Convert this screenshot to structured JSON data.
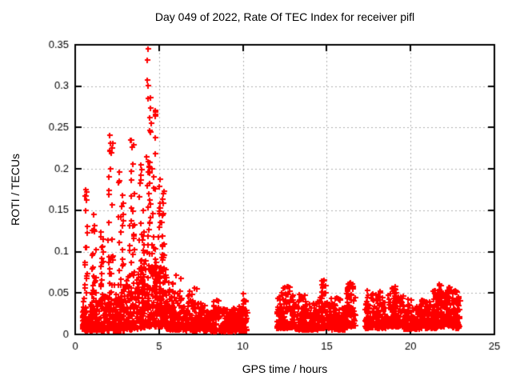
{
  "chart_data": {
    "type": "scatter",
    "title": "Day 049 of 2022, Rate Of TEC Index for receiver pifl",
    "xlabel": "GPS time / hours",
    "ylabel": "ROTI / TECUs",
    "xlim": [
      0,
      25
    ],
    "ylim": [
      0,
      0.35
    ],
    "xticks": [
      0,
      5,
      10,
      15,
      20,
      25
    ],
    "yticks": [
      0,
      0.05,
      0.1,
      0.15,
      0.2,
      0.25,
      0.3,
      0.35
    ],
    "xtick_labels": [
      "0",
      "5",
      "10",
      "15",
      "20",
      "25"
    ],
    "ytick_labels": [
      "0",
      "0.05",
      "0.1",
      "0.15",
      "0.2",
      "0.25",
      "0.3",
      "0.35"
    ],
    "grid": "dashed-major-both-axes",
    "legend": "none",
    "marker": "plus",
    "marker_color": "#ff0000",
    "grid_color": "#b0b0b0",
    "border_color": "#000000",
    "text_color": "#000000",
    "background": "#ffffff",
    "data_start_hour": 0.42,
    "data_end_hour": 22.95,
    "gaps": [
      [
        10.25,
        12.0
      ],
      [
        16.72,
        17.25
      ]
    ],
    "max_point": {
      "x": 4.33,
      "y": 0.345
    },
    "notable_points": [
      [
        4.33,
        0.345
      ],
      [
        4.28,
        0.332
      ],
      [
        4.3,
        0.307
      ],
      [
        4.35,
        0.301
      ],
      [
        4.32,
        0.285
      ],
      [
        4.45,
        0.262
      ],
      [
        4.52,
        0.255
      ],
      [
        4.42,
        0.247
      ],
      [
        2.05,
        0.241
      ],
      [
        2.12,
        0.231
      ],
      [
        3.32,
        0.235
      ],
      [
        3.4,
        0.226
      ],
      [
        3.9,
        0.205
      ],
      [
        2.62,
        0.196
      ],
      [
        5.05,
        0.188
      ],
      [
        0.6,
        0.175
      ],
      [
        0.63,
        0.167
      ],
      [
        1.08,
        0.145
      ],
      [
        1.55,
        0.124
      ],
      [
        14.82,
        0.066
      ],
      [
        16.35,
        0.062
      ],
      [
        12.62,
        0.058
      ],
      [
        21.7,
        0.061
      ],
      [
        22.3,
        0.057
      ]
    ],
    "segments": [
      {
        "x0": 0.42,
        "x1": 0.95,
        "n": 70,
        "y_min": 0.005,
        "y_max": 0.045,
        "spikes": [
          {
            "x0": 0.55,
            "x1": 0.72,
            "n": 16,
            "y_min": 0.05,
            "y_max": 0.175
          }
        ]
      },
      {
        "x0": 0.95,
        "x1": 1.45,
        "n": 65,
        "y_min": 0.005,
        "y_max": 0.05,
        "spikes": [
          {
            "x0": 1.0,
            "x1": 1.25,
            "n": 20,
            "y_min": 0.05,
            "y_max": 0.145
          }
        ]
      },
      {
        "x0": 1.45,
        "x1": 1.85,
        "n": 55,
        "y_min": 0.005,
        "y_max": 0.05,
        "spikes": [
          {
            "x0": 1.5,
            "x1": 1.7,
            "n": 14,
            "y_min": 0.05,
            "y_max": 0.125
          }
        ]
      },
      {
        "x0": 1.85,
        "x1": 2.45,
        "n": 80,
        "y_min": 0.005,
        "y_max": 0.06,
        "spikes": [
          {
            "x0": 1.95,
            "x1": 2.25,
            "n": 26,
            "y_min": 0.06,
            "y_max": 0.243
          }
        ]
      },
      {
        "x0": 2.45,
        "x1": 3.05,
        "n": 80,
        "y_min": 0.005,
        "y_max": 0.06,
        "spikes": [
          {
            "x0": 2.55,
            "x1": 2.9,
            "n": 20,
            "y_min": 0.06,
            "y_max": 0.2
          }
        ]
      },
      {
        "x0": 3.05,
        "x1": 3.75,
        "n": 90,
        "y_min": 0.006,
        "y_max": 0.07,
        "spikes": [
          {
            "x0": 3.2,
            "x1": 3.55,
            "n": 26,
            "y_min": 0.07,
            "y_max": 0.235
          }
        ]
      },
      {
        "x0": 3.75,
        "x1": 4.2,
        "n": 70,
        "y_min": 0.008,
        "y_max": 0.08,
        "spikes": [
          {
            "x0": 3.8,
            "x1": 4.1,
            "n": 22,
            "y_min": 0.08,
            "y_max": 0.205
          }
        ]
      },
      {
        "x0": 4.2,
        "x1": 4.85,
        "n": 100,
        "y_min": 0.01,
        "y_max": 0.09,
        "spikes": [
          {
            "x0": 4.25,
            "x1": 4.8,
            "n": 42,
            "y_min": 0.09,
            "y_max": 0.295
          }
        ]
      },
      {
        "x0": 4.85,
        "x1": 5.45,
        "n": 95,
        "y_min": 0.01,
        "y_max": 0.08,
        "spikes": [
          {
            "x0": 4.9,
            "x1": 5.3,
            "n": 30,
            "y_min": 0.08,
            "y_max": 0.185
          }
        ]
      },
      {
        "x0": 5.45,
        "x1": 6.6,
        "n": 130,
        "y_min": 0.006,
        "y_max": 0.05,
        "spikes": [
          {
            "x0": 5.5,
            "x1": 6.3,
            "n": 12,
            "y_min": 0.05,
            "y_max": 0.075
          }
        ]
      },
      {
        "x0": 6.6,
        "x1": 8.1,
        "n": 170,
        "y_min": 0.005,
        "y_max": 0.04,
        "spikes": [
          {
            "x0": 6.7,
            "x1": 7.3,
            "n": 10,
            "y_min": 0.04,
            "y_max": 0.058
          }
        ]
      },
      {
        "x0": 8.1,
        "x1": 9.6,
        "n": 170,
        "y_min": 0.004,
        "y_max": 0.032,
        "spikes": [
          {
            "x0": 8.2,
            "x1": 8.6,
            "n": 6,
            "y_min": 0.032,
            "y_max": 0.047
          }
        ]
      },
      {
        "x0": 9.6,
        "x1": 10.25,
        "n": 75,
        "y_min": 0.005,
        "y_max": 0.035,
        "spikes": [
          {
            "x0": 9.9,
            "x1": 10.2,
            "n": 6,
            "y_min": 0.035,
            "y_max": 0.05
          }
        ]
      },
      {
        "x0": 12.0,
        "x1": 13.1,
        "n": 130,
        "y_min": 0.008,
        "y_max": 0.048,
        "spikes": [
          {
            "x0": 12.3,
            "x1": 12.9,
            "n": 10,
            "y_min": 0.048,
            "y_max": 0.058
          }
        ]
      },
      {
        "x0": 13.1,
        "x1": 14.5,
        "n": 160,
        "y_min": 0.006,
        "y_max": 0.04,
        "spikes": [
          {
            "x0": 13.3,
            "x1": 13.7,
            "n": 6,
            "y_min": 0.04,
            "y_max": 0.05
          }
        ]
      },
      {
        "x0": 14.5,
        "x1": 15.3,
        "n": 95,
        "y_min": 0.008,
        "y_max": 0.045,
        "spikes": [
          {
            "x0": 14.7,
            "x1": 14.95,
            "n": 12,
            "y_min": 0.045,
            "y_max": 0.067
          }
        ]
      },
      {
        "x0": 15.3,
        "x1": 16.1,
        "n": 95,
        "y_min": 0.006,
        "y_max": 0.04,
        "spikes": [
          {
            "x0": 15.5,
            "x1": 15.85,
            "n": 6,
            "y_min": 0.04,
            "y_max": 0.05
          }
        ]
      },
      {
        "x0": 16.1,
        "x1": 16.72,
        "n": 75,
        "y_min": 0.01,
        "y_max": 0.05,
        "spikes": [
          {
            "x0": 16.2,
            "x1": 16.6,
            "n": 12,
            "y_min": 0.05,
            "y_max": 0.063
          }
        ]
      },
      {
        "x0": 17.25,
        "x1": 18.6,
        "n": 160,
        "y_min": 0.008,
        "y_max": 0.045,
        "spikes": [
          {
            "x0": 17.4,
            "x1": 18.2,
            "n": 10,
            "y_min": 0.045,
            "y_max": 0.056
          }
        ]
      },
      {
        "x0": 18.6,
        "x1": 19.6,
        "n": 120,
        "y_min": 0.01,
        "y_max": 0.048,
        "spikes": [
          {
            "x0": 18.8,
            "x1": 19.2,
            "n": 10,
            "y_min": 0.048,
            "y_max": 0.058
          }
        ]
      },
      {
        "x0": 19.6,
        "x1": 20.6,
        "n": 120,
        "y_min": 0.007,
        "y_max": 0.035,
        "spikes": [
          {
            "x0": 19.8,
            "x1": 20.05,
            "n": 4,
            "y_min": 0.035,
            "y_max": 0.045
          }
        ]
      },
      {
        "x0": 20.6,
        "x1": 21.6,
        "n": 120,
        "y_min": 0.008,
        "y_max": 0.042,
        "spikes": [
          {
            "x0": 21.3,
            "x1": 21.58,
            "n": 8,
            "y_min": 0.042,
            "y_max": 0.055
          }
        ]
      },
      {
        "x0": 21.6,
        "x1": 22.5,
        "n": 110,
        "y_min": 0.01,
        "y_max": 0.05,
        "spikes": [
          {
            "x0": 21.65,
            "x1": 21.85,
            "n": 8,
            "y_min": 0.05,
            "y_max": 0.062
          },
          {
            "x0": 22.15,
            "x1": 22.45,
            "n": 8,
            "y_min": 0.05,
            "y_max": 0.058
          }
        ]
      },
      {
        "x0": 22.5,
        "x1": 22.95,
        "n": 70,
        "y_min": 0.008,
        "y_max": 0.05,
        "spikes": [
          {
            "x0": 22.55,
            "x1": 22.78,
            "n": 6,
            "y_min": 0.05,
            "y_max": 0.056
          }
        ]
      }
    ]
  }
}
